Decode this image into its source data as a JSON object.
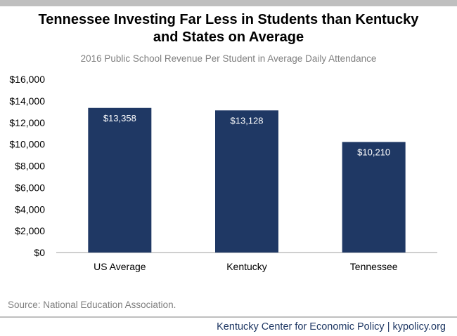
{
  "title_line1": "Tennessee Investing Far Less in Students than Kentucky",
  "title_line2": "and States on Average",
  "subtitle": "2016 Public School Revenue Per Student in Average Daily Attendance",
  "source": "Source: National Education Association.",
  "footer": "Kentucky Center for Economic Policy | kypolicy.org",
  "colors": {
    "bar": "#1f3864",
    "axis": "#bfbfbf"
  },
  "chart_data": {
    "type": "bar",
    "categories": [
      "US Average",
      "Kentucky",
      "Tennessee"
    ],
    "values": [
      13358,
      13128,
      10210
    ],
    "data_labels": [
      "$13,358",
      "$13,128",
      "$10,210"
    ],
    "yticks": [
      0,
      2000,
      4000,
      6000,
      8000,
      10000,
      12000,
      14000,
      16000
    ],
    "ytick_labels": [
      "$0",
      "$2,000",
      "$4,000",
      "$6,000",
      "$8,000",
      "$10,000",
      "$12,000",
      "$14,000",
      "$16,000"
    ],
    "ylim": [
      0,
      16000
    ],
    "grid": false,
    "legend": "none"
  }
}
